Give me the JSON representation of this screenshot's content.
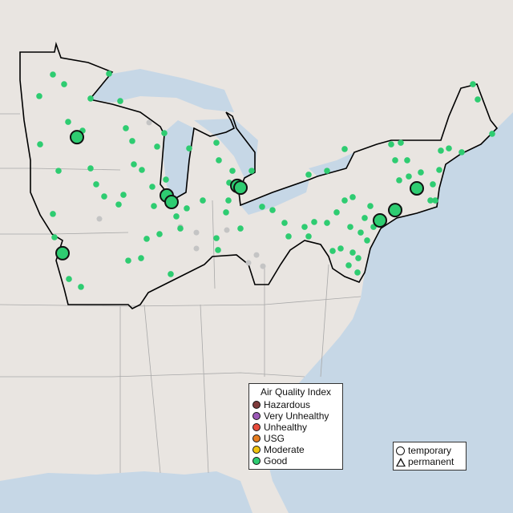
{
  "map": {
    "colors": {
      "land": "#e9e5e1",
      "water": "#c6d7e6",
      "border": "#a8a8a8",
      "region_outline": "#000000",
      "inactive": "#c4c4c4"
    },
    "good_sites_temporary": [
      [
        -92.95,
        45.21
      ],
      [
        -93.85,
        40.04
      ],
      [
        -87.35,
        42.61
      ],
      [
        -87.05,
        42.32
      ],
      [
        -82.95,
        43.04
      ],
      [
        -82.75,
        42.96
      ],
      [
        -74.05,
        41.5
      ],
      [
        -73.1,
        41.96
      ],
      [
        -71.75,
        42.93
      ]
    ],
    "good_sites_permanent": [
      [
        -94.45,
        48.0
      ],
      [
        -93.75,
        47.57
      ],
      [
        -95.3,
        47.04
      ],
      [
        -92.1,
        46.93
      ],
      [
        -90.95,
        48.04
      ],
      [
        -90.25,
        46.82
      ],
      [
        -93.5,
        45.89
      ],
      [
        -92.6,
        45.5
      ],
      [
        -95.25,
        44.89
      ],
      [
        -94.1,
        43.71
      ],
      [
        -92.1,
        43.82
      ],
      [
        -91.75,
        43.11
      ],
      [
        -94.45,
        41.79
      ],
      [
        -91.25,
        42.57
      ],
      [
        -90.05,
        42.64
      ],
      [
        -90.35,
        42.21
      ],
      [
        -89.9,
        45.61
      ],
      [
        -89.5,
        45.04
      ],
      [
        -89.4,
        44.0
      ],
      [
        -88.9,
        43.75
      ],
      [
        -87.95,
        44.79
      ],
      [
        -87.5,
        45.39
      ],
      [
        -85.95,
        44.71
      ],
      [
        -87.4,
        43.32
      ],
      [
        -88.25,
        43.0
      ],
      [
        -88.15,
        42.14
      ],
      [
        -86.75,
        41.68
      ],
      [
        -86.5,
        41.14
      ],
      [
        -86.1,
        42.04
      ],
      [
        -85.1,
        42.39
      ],
      [
        -89.75,
        39.71
      ],
      [
        -88.95,
        39.82
      ],
      [
        -88.6,
        40.68
      ],
      [
        -87.8,
        40.89
      ],
      [
        -87.1,
        39.11
      ],
      [
        -93.45,
        38.89
      ],
      [
        -92.7,
        38.54
      ],
      [
        -94.35,
        40.75
      ],
      [
        -84.25,
        44.96
      ],
      [
        -84.1,
        44.18
      ],
      [
        -83.25,
        43.71
      ],
      [
        -83.45,
        43.18
      ],
      [
        -82.05,
        43.71
      ],
      [
        -83.5,
        42.39
      ],
      [
        -82.75,
        41.14
      ],
      [
        -84.25,
        40.71
      ],
      [
        -84.15,
        40.18
      ],
      [
        -83.65,
        41.86
      ],
      [
        -81.4,
        42.11
      ],
      [
        -80.75,
        41.96
      ],
      [
        -80.0,
        41.39
      ],
      [
        -79.75,
        40.79
      ],
      [
        -78.75,
        41.21
      ],
      [
        -78.5,
        40.79
      ],
      [
        -78.15,
        41.43
      ],
      [
        -77.35,
        41.39
      ],
      [
        -76.75,
        41.86
      ],
      [
        -76.25,
        42.39
      ],
      [
        -75.75,
        42.54
      ],
      [
        -75.9,
        41.21
      ],
      [
        -75.25,
        40.96
      ],
      [
        -74.85,
        40.61
      ],
      [
        -74.45,
        41.21
      ],
      [
        -75.75,
        40.07
      ],
      [
        -76.5,
        40.25
      ],
      [
        -75.4,
        39.82
      ],
      [
        -77.0,
        40.14
      ],
      [
        -75.45,
        39.18
      ],
      [
        -76.0,
        39.5
      ],
      [
        -75.0,
        41.61
      ],
      [
        -74.65,
        42.14
      ],
      [
        -78.5,
        43.54
      ],
      [
        -77.35,
        43.71
      ],
      [
        -76.25,
        44.68
      ],
      [
        -73.35,
        44.89
      ],
      [
        -72.75,
        44.96
      ],
      [
        -72.35,
        44.18
      ],
      [
        -73.1,
        44.18
      ],
      [
        -72.85,
        43.29
      ],
      [
        -72.25,
        43.46
      ],
      [
        -71.5,
        43.64
      ],
      [
        -70.75,
        43.11
      ],
      [
        -70.9,
        42.39
      ],
      [
        -70.6,
        42.39
      ],
      [
        -70.25,
        44.61
      ],
      [
        -70.35,
        43.75
      ],
      [
        -69.75,
        44.71
      ],
      [
        -68.95,
        44.54
      ],
      [
        -68.25,
        47.57
      ],
      [
        -67.95,
        46.89
      ],
      [
        -67.05,
        45.36
      ],
      [
        -72.85,
        42.04
      ]
    ],
    "inactive_sites": [
      [
        -88.45,
        45.86
      ],
      [
        -91.55,
        41.57
      ],
      [
        -85.5,
        40.96
      ],
      [
        -85.5,
        40.25
      ],
      [
        -86.5,
        41.21
      ],
      [
        -83.6,
        41.07
      ],
      [
        -81.75,
        39.96
      ],
      [
        -81.35,
        39.46
      ],
      [
        -82.25,
        39.61
      ]
    ]
  },
  "legend_aqi": {
    "title": "Air Quality Index",
    "items": [
      {
        "label": "Hazardous",
        "color": "#7e3b3b"
      },
      {
        "label": "Very Unhealthy",
        "color": "#9b59b6"
      },
      {
        "label": "Unhealthy",
        "color": "#e74c3c"
      },
      {
        "label": "USG",
        "color": "#e67e22"
      },
      {
        "label": "Moderate",
        "color": "#f1c40f"
      },
      {
        "label": "Good",
        "color": "#2ecc71"
      }
    ]
  },
  "legend_type": {
    "temporary": "temporary",
    "permanent": "permanent"
  }
}
